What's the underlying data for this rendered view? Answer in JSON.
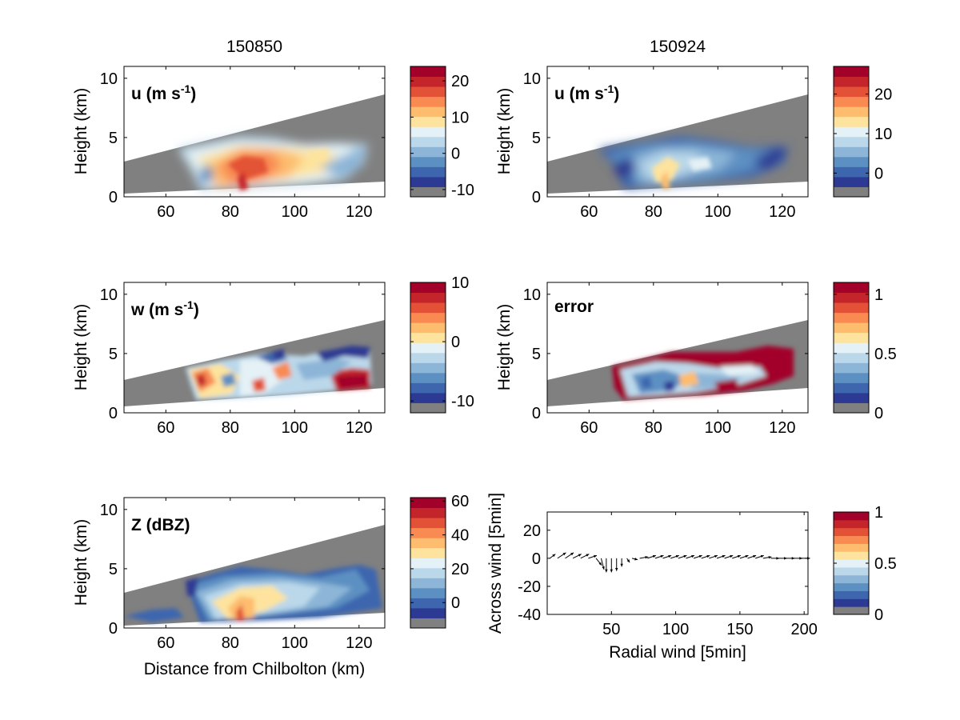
{
  "titles": {
    "left": "150850",
    "right": "150924"
  },
  "colors": {
    "no_data": "#808080",
    "palette": [
      "#2d3a93",
      "#3e66af",
      "#5d90c2",
      "#8cb5d7",
      "#bbd8ea",
      "#e4f1f6",
      "#fde39d",
      "#fdbc6e",
      "#f88a52",
      "#e35236",
      "#c4252b",
      "#a2012a"
    ],
    "arrow": "#000000"
  },
  "panels": [
    {
      "id": "u-left",
      "label": "u (m s",
      "label_sup": "-1",
      "label_end": ")",
      "ylabel": "Height (km)",
      "xlabel": "",
      "x_ticks": [
        60,
        80,
        100,
        120
      ],
      "y_ticks": [
        0,
        5,
        10
      ],
      "colorbar": {
        "ticks": [
          "20",
          "10",
          "0",
          "-10"
        ]
      }
    },
    {
      "id": "u-right",
      "label": "u (m s",
      "label_sup": "-1",
      "label_end": ")",
      "ylabel": "Height (km)",
      "xlabel": "",
      "x_ticks": [
        60,
        80,
        100,
        120
      ],
      "y_ticks": [
        0,
        5,
        10
      ],
      "colorbar": {
        "ticks": [
          "20",
          "10",
          "0"
        ]
      }
    },
    {
      "id": "w-left",
      "label": "w (m s",
      "label_sup": "-1",
      "label_end": ")",
      "ylabel": "Height (km)",
      "xlabel": "",
      "x_ticks": [
        60,
        80,
        100,
        120
      ],
      "y_ticks": [
        0,
        5,
        10
      ],
      "colorbar": {
        "ticks": [
          "10",
          "0",
          "-10"
        ]
      }
    },
    {
      "id": "error-right",
      "label": "error",
      "label_sup": "",
      "label_end": "",
      "ylabel": "Height (km)",
      "xlabel": "",
      "x_ticks": [
        60,
        80,
        100,
        120
      ],
      "y_ticks": [
        0,
        5,
        10
      ],
      "colorbar": {
        "ticks": [
          "1",
          "0.5",
          "0"
        ]
      }
    },
    {
      "id": "z-left",
      "label": "Z (dBZ)",
      "label_sup": "",
      "label_end": "",
      "ylabel": "Height (km)",
      "xlabel": "Distance from Chilbolton (km)",
      "x_ticks": [
        60,
        80,
        100,
        120
      ],
      "y_ticks": [
        0,
        5,
        10
      ],
      "colorbar": {
        "ticks": [
          "60",
          "40",
          "20",
          "0"
        ]
      }
    },
    {
      "id": "quiver-right",
      "label": "",
      "label_sup": "",
      "label_end": "",
      "ylabel": "Across wind [5min]",
      "xlabel": "Radial wind [5min]",
      "x_ticks": [
        50,
        100,
        150,
        200
      ],
      "y_ticks": [
        20,
        0,
        -20,
        -40
      ],
      "colorbar": {
        "ticks": [
          "1",
          "0.5",
          "0"
        ]
      }
    }
  ],
  "chart_data": [
    {
      "type": "heatmap",
      "panel": "u-left",
      "title": "150850",
      "field": "u (m s-1)",
      "xlabel": "",
      "ylabel": "Height (km)",
      "xlim": [
        47,
        128
      ],
      "ylim": [
        0,
        11
      ],
      "colorbar": {
        "range": [
          -12,
          24
        ],
        "ticks": [
          20,
          10,
          0,
          -10
        ]
      },
      "gray_wedge": {
        "x": [
          47,
          128
        ],
        "top_km": [
          2.8,
          8.6
        ],
        "bottom_km": [
          0.2,
          1.2
        ]
      },
      "echo_extent_x": [
        64,
        122
      ],
      "echo_top_km": [
        [
          64,
          3.5
        ],
        [
          80,
          4.8
        ],
        [
          90,
          4.8
        ],
        [
          110,
          3.9
        ],
        [
          122,
          4.5
        ]
      ],
      "summary": {
        "max_region": [
          [
            78,
            1.5,
            16
          ],
          [
            88,
            2.5,
            14
          ]
        ],
        "min_region": [
          [
            115,
            2.0,
            -2
          ]
        ]
      }
    },
    {
      "type": "heatmap",
      "panel": "u-right",
      "title": "150924",
      "field": "u (m s-1)",
      "xlabel": "",
      "ylabel": "Height (km)",
      "xlim": [
        47,
        128
      ],
      "ylim": [
        0,
        11
      ],
      "colorbar": {
        "range": [
          -6,
          27
        ],
        "ticks": [
          20,
          10,
          0
        ]
      },
      "gray_wedge": {
        "x": [
          47,
          128
        ],
        "top_km": [
          2.8,
          8.6
        ],
        "bottom_km": [
          0.2,
          1.2
        ]
      },
      "echo_extent_x": [
        66,
        122
      ],
      "summary": {
        "max_region": [
          [
            82,
            1.5,
            12
          ]
        ],
        "min_region": [
          [
            75,
            3.5,
            -2
          ],
          [
            115,
            3.0,
            -2
          ]
        ]
      }
    },
    {
      "type": "heatmap",
      "panel": "w-left",
      "field": "w (m s-1)",
      "xlabel": "",
      "ylabel": "Height (km)",
      "xlim": [
        47,
        128
      ],
      "ylim": [
        0,
        11
      ],
      "colorbar": {
        "range": [
          -12,
          10
        ],
        "ticks": [
          10,
          0,
          -10
        ]
      },
      "gray_wedge": {
        "x": [
          47,
          128
        ],
        "top_km": [
          2.6,
          7.8
        ],
        "bottom_km": [
          0.4,
          2.0
        ]
      },
      "echo_extent_x": [
        66,
        123
      ],
      "summary": {
        "max_region": [
          [
            72,
            3.0,
            8
          ],
          [
            118,
            3.0,
            9
          ]
        ],
        "min_region": [
          [
            95,
            5.0,
            -10
          ],
          [
            115,
            5.0,
            -10
          ]
        ]
      }
    },
    {
      "type": "heatmap",
      "panel": "error-right",
      "field": "error",
      "xlabel": "",
      "ylabel": "Height (km)",
      "xlim": [
        47,
        128
      ],
      "ylim": [
        0,
        11
      ],
      "colorbar": {
        "range": [
          0,
          1.1
        ],
        "ticks": [
          1,
          0.5,
          0
        ]
      },
      "gray_wedge": {
        "x": [
          47,
          128
        ],
        "top_km": [
          2.6,
          7.8
        ],
        "bottom_km": [
          0.4,
          2.0
        ]
      },
      "echo_extent_x": [
        67,
        123
      ],
      "summary": {
        "max_region": [
          [
            100,
            4.5,
            1.0
          ],
          [
            120,
            4.5,
            1.0
          ]
        ],
        "min_region": [
          [
            85,
            2.5,
            0.3
          ]
        ]
      }
    },
    {
      "type": "heatmap",
      "panel": "z-left",
      "field": "Z (dBZ)",
      "xlabel": "Distance from Chilbolton (km)",
      "ylabel": "Height (km)",
      "xlim": [
        47,
        128
      ],
      "ylim": [
        0,
        11
      ],
      "colorbar": {
        "range": [
          -15,
          62
        ],
        "ticks": [
          60,
          40,
          20,
          0
        ]
      },
      "gray_wedge": {
        "x": [
          47,
          128
        ],
        "top_km": [
          2.8,
          8.6
        ],
        "bottom_km": [
          0.2,
          1.2
        ]
      },
      "echo_extent_x": [
        48,
        127
      ],
      "summary": {
        "max_region": [
          [
            82,
            1.5,
            40
          ]
        ],
        "min_region": [
          [
            60,
            2.5,
            0
          ]
        ]
      }
    },
    {
      "type": "scatter",
      "panel": "quiver-right",
      "subtype": "quiver",
      "xlabel": "Radial wind [5min]",
      "ylabel": "Across wind [5min]",
      "xlim": [
        0,
        203
      ],
      "ylim": [
        -40,
        33
      ],
      "colorbar": {
        "range": [
          0,
          1
        ],
        "ticks": [
          1,
          0.5,
          0
        ]
      },
      "arrows": [
        [
          2,
          0,
          2,
          3
        ],
        [
          8,
          0,
          3,
          4
        ],
        [
          14,
          0,
          3,
          4
        ],
        [
          20,
          0,
          3,
          3
        ],
        [
          26,
          0,
          3,
          3
        ],
        [
          32,
          0,
          3,
          2
        ],
        [
          38,
          0,
          2,
          -5
        ],
        [
          42,
          0,
          1,
          -8
        ],
        [
          46,
          0,
          0,
          -10
        ],
        [
          50,
          0,
          0,
          -10
        ],
        [
          54,
          0,
          0,
          -9
        ],
        [
          58,
          0,
          0,
          -6
        ],
        [
          62,
          0,
          1,
          -3
        ],
        [
          66,
          0,
          2,
          -1
        ],
        [
          72,
          0,
          3,
          1
        ],
        [
          78,
          0,
          3,
          2
        ],
        [
          84,
          0,
          3,
          2
        ],
        [
          90,
          0,
          3,
          2
        ],
        [
          96,
          0,
          3,
          2
        ],
        [
          102,
          0,
          3,
          2
        ],
        [
          108,
          0,
          3,
          2
        ],
        [
          114,
          0,
          3,
          2
        ],
        [
          120,
          0,
          3,
          2
        ],
        [
          126,
          0,
          3,
          2
        ],
        [
          132,
          0,
          3,
          2
        ],
        [
          138,
          0,
          3,
          2
        ],
        [
          144,
          0,
          3,
          2
        ],
        [
          150,
          0,
          3,
          2
        ],
        [
          156,
          0,
          3,
          2
        ],
        [
          162,
          0,
          3,
          2
        ],
        [
          168,
          0,
          3,
          1
        ],
        [
          174,
          0,
          3,
          0
        ],
        [
          180,
          0,
          3,
          0
        ],
        [
          186,
          0,
          3,
          0
        ],
        [
          192,
          0,
          3,
          0
        ],
        [
          198,
          0,
          3,
          0
        ]
      ]
    }
  ]
}
